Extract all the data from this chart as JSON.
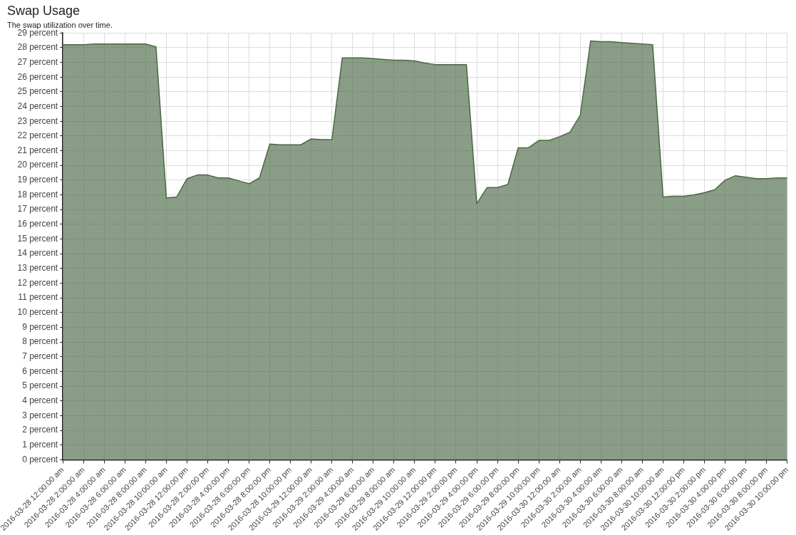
{
  "chart_data": {
    "type": "area",
    "title": "Swap Usage",
    "subtitle": "The swap utilization over time.",
    "categories": [
      "2016-03-28 12:00:00 am",
      null,
      "2016-03-28 2:00:00 am",
      null,
      "2016-03-28 4:00:00 am",
      null,
      "2016-03-28 6:00:00 am",
      null,
      "2016-03-28 8:00:00 am",
      null,
      "2016-03-28 10:00:00 am",
      null,
      "2016-03-28 12:00:00 pm",
      null,
      "2016-03-28 2:00:00 pm",
      null,
      "2016-03-28 4:00:00 pm",
      null,
      "2016-03-28 6:00:00 pm",
      null,
      "2016-03-28 8:00:00 pm",
      null,
      "2016-03-28 10:00:00 pm",
      null,
      "2016-03-29 12:00:00 am",
      null,
      "2016-03-29 2:00:00 am",
      null,
      "2016-03-29 4:00:00 am",
      null,
      "2016-03-29 6:00:00 am",
      null,
      "2016-03-29 8:00:00 am",
      null,
      "2016-03-29 10:00:00 am",
      null,
      "2016-03-29 12:00:00 pm",
      null,
      "2016-03-29 2:00:00 pm",
      null,
      "2016-03-29 4:00:00 pm",
      null,
      "2016-03-29 6:00:00 pm",
      null,
      "2016-03-29 8:00:00 pm",
      null,
      "2016-03-29 10:00:00 pm",
      null,
      "2016-03-30 12:00:00 am",
      null,
      "2016-03-30 2:00:00 am",
      null,
      "2016-03-30 4:00:00 am",
      null,
      "2016-03-30 6:00:00 am",
      null,
      "2016-03-30 8:00:00 am",
      null,
      "2016-03-30 10:00:00 am",
      null,
      "2016-03-30 12:00:00 pm",
      null,
      "2016-03-30 2:00:00 pm",
      null,
      "2016-03-30 4:00:00 pm",
      null,
      "2016-03-30 6:00:00 pm",
      null,
      "2016-03-30 8:00:00 pm",
      null,
      "2016-03-30 10:00:00 pm"
    ],
    "series": [
      {
        "color": "#4b6845",
        "values": [
          28.2,
          28.2,
          28.2,
          28.25,
          28.25,
          28.25,
          28.25,
          28.25,
          28.25,
          28.05,
          17.8,
          17.85,
          19.1,
          19.35,
          19.35,
          19.15,
          19.15,
          18.95,
          18.75,
          19.15,
          21.45,
          21.4,
          21.4,
          21.4,
          21.8,
          21.75,
          21.75,
          27.3,
          27.3,
          27.3,
          27.25,
          27.2,
          27.15,
          27.15,
          27.1,
          26.95,
          26.85,
          26.85,
          26.85,
          26.85,
          17.4,
          18.5,
          18.5,
          18.7,
          21.2,
          21.2,
          21.7,
          21.7,
          21.95,
          22.25,
          23.4,
          28.45,
          28.4,
          28.4,
          28.35,
          28.3,
          28.25,
          28.2,
          17.85,
          17.9,
          17.9,
          18.0,
          18.15,
          18.35,
          19.0,
          19.3,
          19.2,
          19.1,
          19.1,
          19.15,
          19.15
        ]
      }
    ],
    "ylim": [
      0,
      29
    ],
    "yticks": [
      {
        "value": 0,
        "label": "0 percent"
      },
      {
        "value": 1,
        "label": "1 percent"
      },
      {
        "value": 2,
        "label": "2 percent"
      },
      {
        "value": 3,
        "label": "3 percent"
      },
      {
        "value": 4,
        "label": "4 percent"
      },
      {
        "value": 5,
        "label": "5 percent"
      },
      {
        "value": 6,
        "label": "6 percent"
      },
      {
        "value": 7,
        "label": "7 percent"
      },
      {
        "value": 8,
        "label": "8 percent"
      },
      {
        "value": 9,
        "label": "9 percent"
      },
      {
        "value": 10,
        "label": "10 percent"
      },
      {
        "value": 11,
        "label": "11 percent"
      },
      {
        "value": 12,
        "label": "12 percent"
      },
      {
        "value": 13,
        "label": "13 percent"
      },
      {
        "value": 14,
        "label": "14 percent"
      },
      {
        "value": 15,
        "label": "15 percent"
      },
      {
        "value": 16,
        "label": "16 percent"
      },
      {
        "value": 17,
        "label": "17 percent"
      },
      {
        "value": 18,
        "label": "18 percent"
      },
      {
        "value": 19,
        "label": "19 percent"
      },
      {
        "value": 20,
        "label": "20 percent"
      },
      {
        "value": 21,
        "label": "21 percent"
      },
      {
        "value": 22,
        "label": "22 percent"
      },
      {
        "value": 23,
        "label": "23 percent"
      },
      {
        "value": 24,
        "label": "24 percent"
      },
      {
        "value": 25,
        "label": "25 percent"
      },
      {
        "value": 26,
        "label": "26 percent"
      },
      {
        "value": 27,
        "label": "27 percent"
      },
      {
        "value": 28,
        "label": "28 percent"
      },
      {
        "value": 29,
        "label": "29 percent"
      }
    ],
    "grid": true,
    "marker": "none",
    "line_style": "solid"
  }
}
